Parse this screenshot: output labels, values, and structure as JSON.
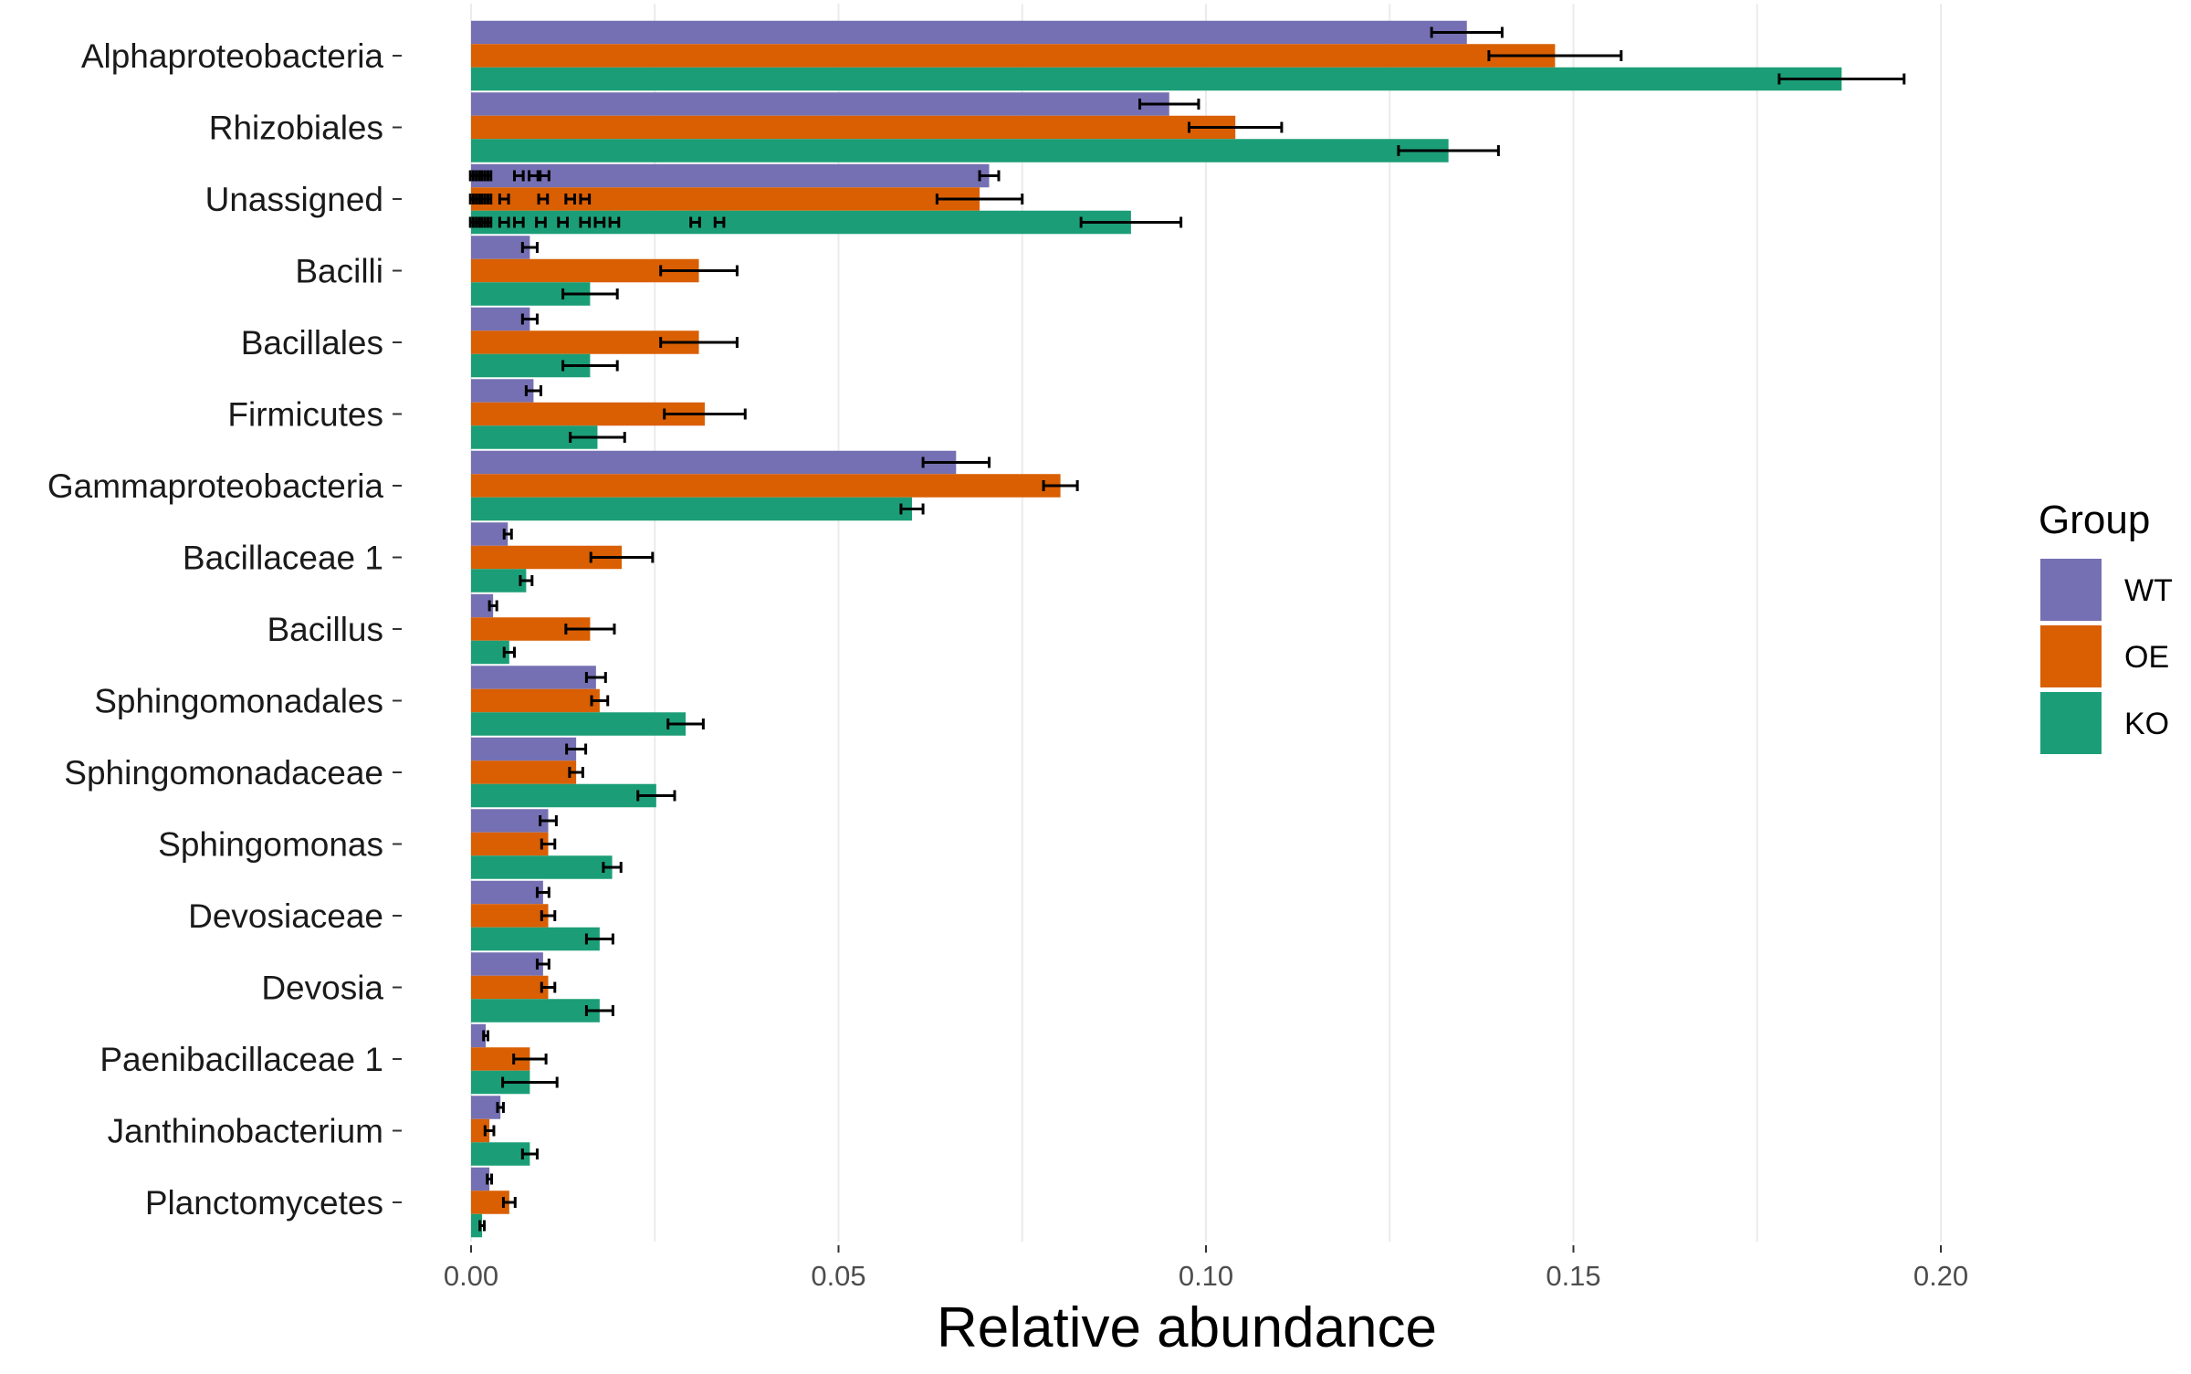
{
  "chart_data": {
    "type": "bar",
    "orientation": "horizontal",
    "xlabel": "Relative abundance",
    "ylabel": "",
    "xlim": [
      0,
      0.215
    ],
    "x_ticks": [
      0.0,
      0.05,
      0.1,
      0.15,
      0.2
    ],
    "x_tick_labels": [
      "0.00",
      "0.05",
      "0.10",
      "0.15",
      "0.20"
    ],
    "grid": true,
    "legend": {
      "title": "Group",
      "position": "right"
    },
    "categories": [
      "Alphaproteobacteria",
      "Rhizobiales",
      "Unassigned",
      "Bacilli",
      "Bacillales",
      "Firmicutes",
      "Gammaproteobacteria",
      "Bacillaceae 1",
      "Bacillus",
      "Sphingomonadales",
      "Sphingomonadaceae",
      "Sphingomonas",
      "Devosiaceae",
      "Devosia",
      "Paenibacillaceae 1",
      "Janthinobacterium",
      "Planctomycetes"
    ],
    "series": [
      {
        "name": "WT",
        "color": "#7570b3",
        "values": [
          0.1355,
          0.095,
          0.0705,
          0.008,
          0.008,
          0.0085,
          0.066,
          0.005,
          0.003,
          0.017,
          0.0143,
          0.0105,
          0.0098,
          0.0098,
          0.002,
          0.004,
          0.0025
        ],
        "errors": [
          0.0048,
          0.004,
          0.0013,
          0.001,
          0.001,
          0.001,
          0.0045,
          0.0005,
          0.0005,
          0.0013,
          0.0013,
          0.0011,
          0.0008,
          0.0008,
          0.0003,
          0.0004,
          0.0003
        ]
      },
      {
        "name": "OE",
        "color": "#d95f02",
        "values": [
          0.1475,
          0.104,
          0.0692,
          0.031,
          0.031,
          0.0318,
          0.0802,
          0.0205,
          0.0162,
          0.0175,
          0.0143,
          0.0105,
          0.0105,
          0.0105,
          0.008,
          0.0025,
          0.0052
        ],
        "errors": [
          0.009,
          0.0063,
          0.0058,
          0.0052,
          0.0052,
          0.0055,
          0.0023,
          0.0042,
          0.0033,
          0.0011,
          0.0009,
          0.0009,
          0.0009,
          0.0009,
          0.0022,
          0.0006,
          0.0008
        ]
      },
      {
        "name": "KO",
        "color": "#1b9e77",
        "values": [
          0.1865,
          0.133,
          0.0898,
          0.0162,
          0.0162,
          0.0172,
          0.06,
          0.0075,
          0.0052,
          0.0292,
          0.0252,
          0.0192,
          0.0175,
          0.0175,
          0.008,
          0.008,
          0.0015
        ],
        "errors": [
          0.0085,
          0.0068,
          0.0068,
          0.0037,
          0.0037,
          0.0037,
          0.0015,
          0.0008,
          0.0007,
          0.0024,
          0.0025,
          0.0012,
          0.0018,
          0.0018,
          0.0037,
          0.001,
          0.0003
        ]
      }
    ],
    "unassigned_extra_error_positions": {
      "WT": [
        0.0005,
        0.0009,
        0.0013,
        0.0017,
        0.0021,
        0.0065,
        0.0085,
        0.01
      ],
      "OE": [
        0.0005,
        0.0009,
        0.0013,
        0.0017,
        0.0021,
        0.0045,
        0.0098,
        0.0135,
        0.0155
      ],
      "KO": [
        0.0005,
        0.0009,
        0.0013,
        0.0017,
        0.0021,
        0.0045,
        0.0065,
        0.0095,
        0.0125,
        0.0155,
        0.0175,
        0.0195,
        0.0305,
        0.0338
      ]
    }
  }
}
